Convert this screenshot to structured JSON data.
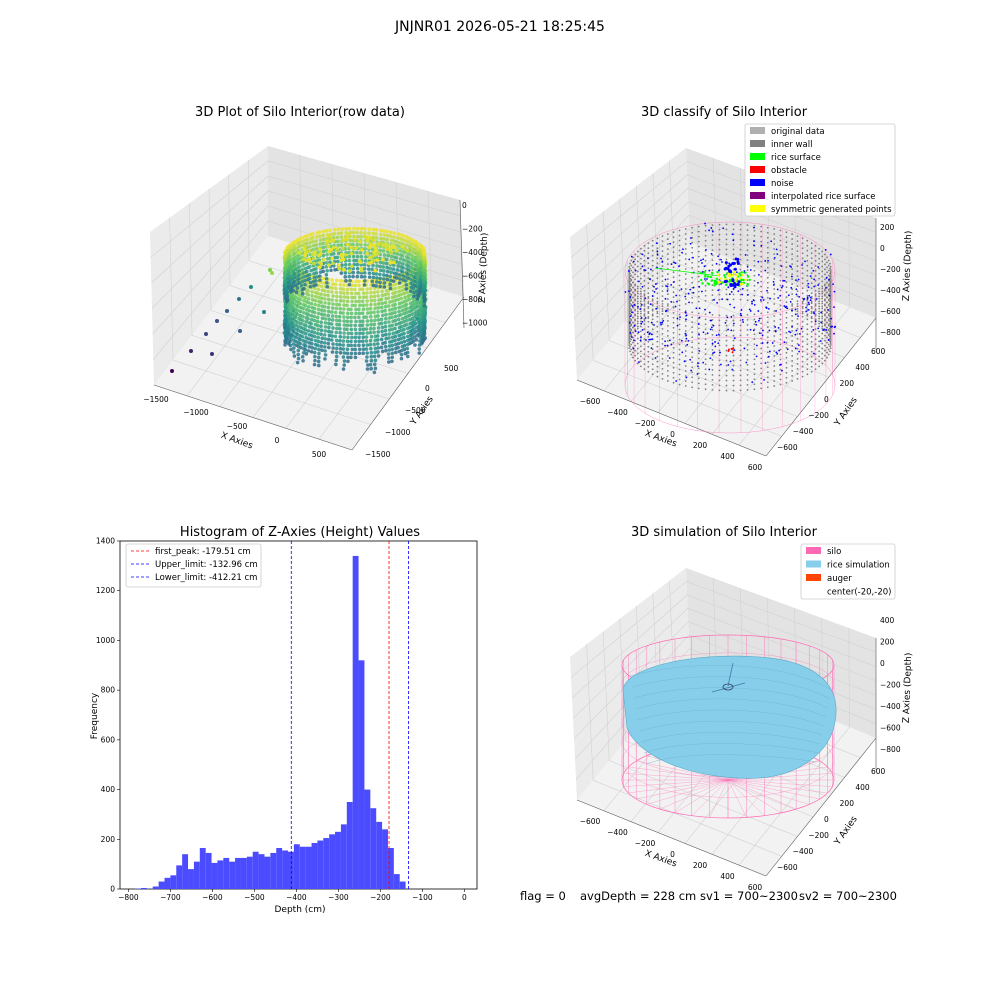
{
  "figure": {
    "suptitle": "JNJNR01 2026-05-21 18:25:45"
  },
  "colors": {
    "silo": "#ff69b4",
    "rice_simulation": "#87ceeb",
    "auger": "#ff4500",
    "original": "#b0b0b0",
    "inner_wall": "#808080",
    "rice_surface": "#00ff00",
    "obstacle": "#ff0000",
    "noise": "#0000ff",
    "interpolated": "#800080",
    "symmetric": "#ffff00",
    "hist_bar": "#4b4bff"
  },
  "panels": {
    "raw": {
      "title": "3D Plot of Silo Interior(row data)",
      "xlabel": "X Axies",
      "ylabel": "Y Axies",
      "zlabel": "Z Axies (Depth)",
      "xticks": [
        "−1500",
        "−1000",
        "−500",
        "0",
        "500"
      ],
      "yticks": [
        "−1500",
        "−1000",
        "−500",
        "0",
        "500"
      ],
      "zticks": [
        "0",
        "−200",
        "−400",
        "−600",
        "−800",
        "−1000"
      ]
    },
    "classify": {
      "title": "3D classify of Silo Interior",
      "xlabel": "X Axies",
      "ylabel": "Y Axies",
      "zlabel": "Z Axies (Depth)",
      "xticks": [
        "−600",
        "−400",
        "−200",
        "0",
        "200",
        "400",
        "600"
      ],
      "yticks": [
        "−600",
        "−400",
        "−200",
        "0",
        "200",
        "400",
        "600"
      ],
      "zticks": [
        "200",
        "0",
        "−200",
        "−400",
        "−600",
        "−800"
      ],
      "legend": [
        {
          "label": "original data",
          "color_key": "original"
        },
        {
          "label": "inner wall",
          "color_key": "inner_wall"
        },
        {
          "label": "rice surface",
          "color_key": "rice_surface"
        },
        {
          "label": "obstacle",
          "color_key": "obstacle"
        },
        {
          "label": "noise",
          "color_key": "noise"
        },
        {
          "label": "interpolated rice surface",
          "color_key": "interpolated"
        },
        {
          "label": "symmetric generated points",
          "color_key": "symmetric"
        }
      ]
    },
    "simulation": {
      "title": "3D simulation of Silo Interior",
      "xlabel": "X Axies",
      "ylabel": "Y Axies",
      "zlabel": "Z Axies (Depth)",
      "xticks": [
        "−600",
        "−400",
        "−200",
        "0",
        "200",
        "400",
        "600"
      ],
      "yticks": [
        "−600",
        "−400",
        "−200",
        "0",
        "200",
        "400",
        "600"
      ],
      "zticks": [
        "400",
        "200",
        "0",
        "−200",
        "−400",
        "−600",
        "−800"
      ],
      "legend": [
        {
          "label": "silo",
          "color_key": "silo"
        },
        {
          "label": "rice simulation",
          "color_key": "rice_simulation"
        },
        {
          "label": "auger",
          "color_key": "auger"
        },
        {
          "label": "center(-20,-20)",
          "color_key": ""
        }
      ]
    }
  },
  "status": {
    "flag": "flag = 0",
    "avg": "avgDepth = 228 cm",
    "sv1": "sv1 = 700~2300",
    "sv2": "sv2 = 700~2300"
  },
  "chart_data": {
    "type": "bar",
    "title": "Histogram of Z-Axies (Height) Values",
    "xlabel": "Depth (cm)",
    "ylabel": "Frequency",
    "xlim": [
      -820,
      30
    ],
    "ylim": [
      0,
      1400
    ],
    "xticks": [
      -800,
      -700,
      -600,
      -500,
      -400,
      -300,
      -200,
      -100,
      0
    ],
    "yticks": [
      0,
      200,
      400,
      600,
      800,
      1000,
      1200,
      1400
    ],
    "bin_width": 14,
    "bin_start": -784,
    "values": [
      2,
      4,
      1,
      10,
      30,
      45,
      55,
      95,
      140,
      80,
      110,
      165,
      145,
      105,
      115,
      125,
      110,
      125,
      125,
      130,
      150,
      140,
      130,
      145,
      165,
      155,
      150,
      180,
      170,
      170,
      185,
      195,
      205,
      220,
      230,
      260,
      350,
      1340,
      920,
      400,
      325,
      270,
      240,
      165,
      60,
      30
    ],
    "vlines": [
      {
        "label": "first_peak: -179.51 cm",
        "x": -179.51,
        "color": "#ff0000"
      },
      {
        "label": "Upper_limit: -132.96 cm",
        "x": -132.96,
        "color": "#0000ff"
      },
      {
        "label": "Lower_limit: -412.21 cm",
        "x": -412.21,
        "color": "#0000ff"
      }
    ]
  }
}
